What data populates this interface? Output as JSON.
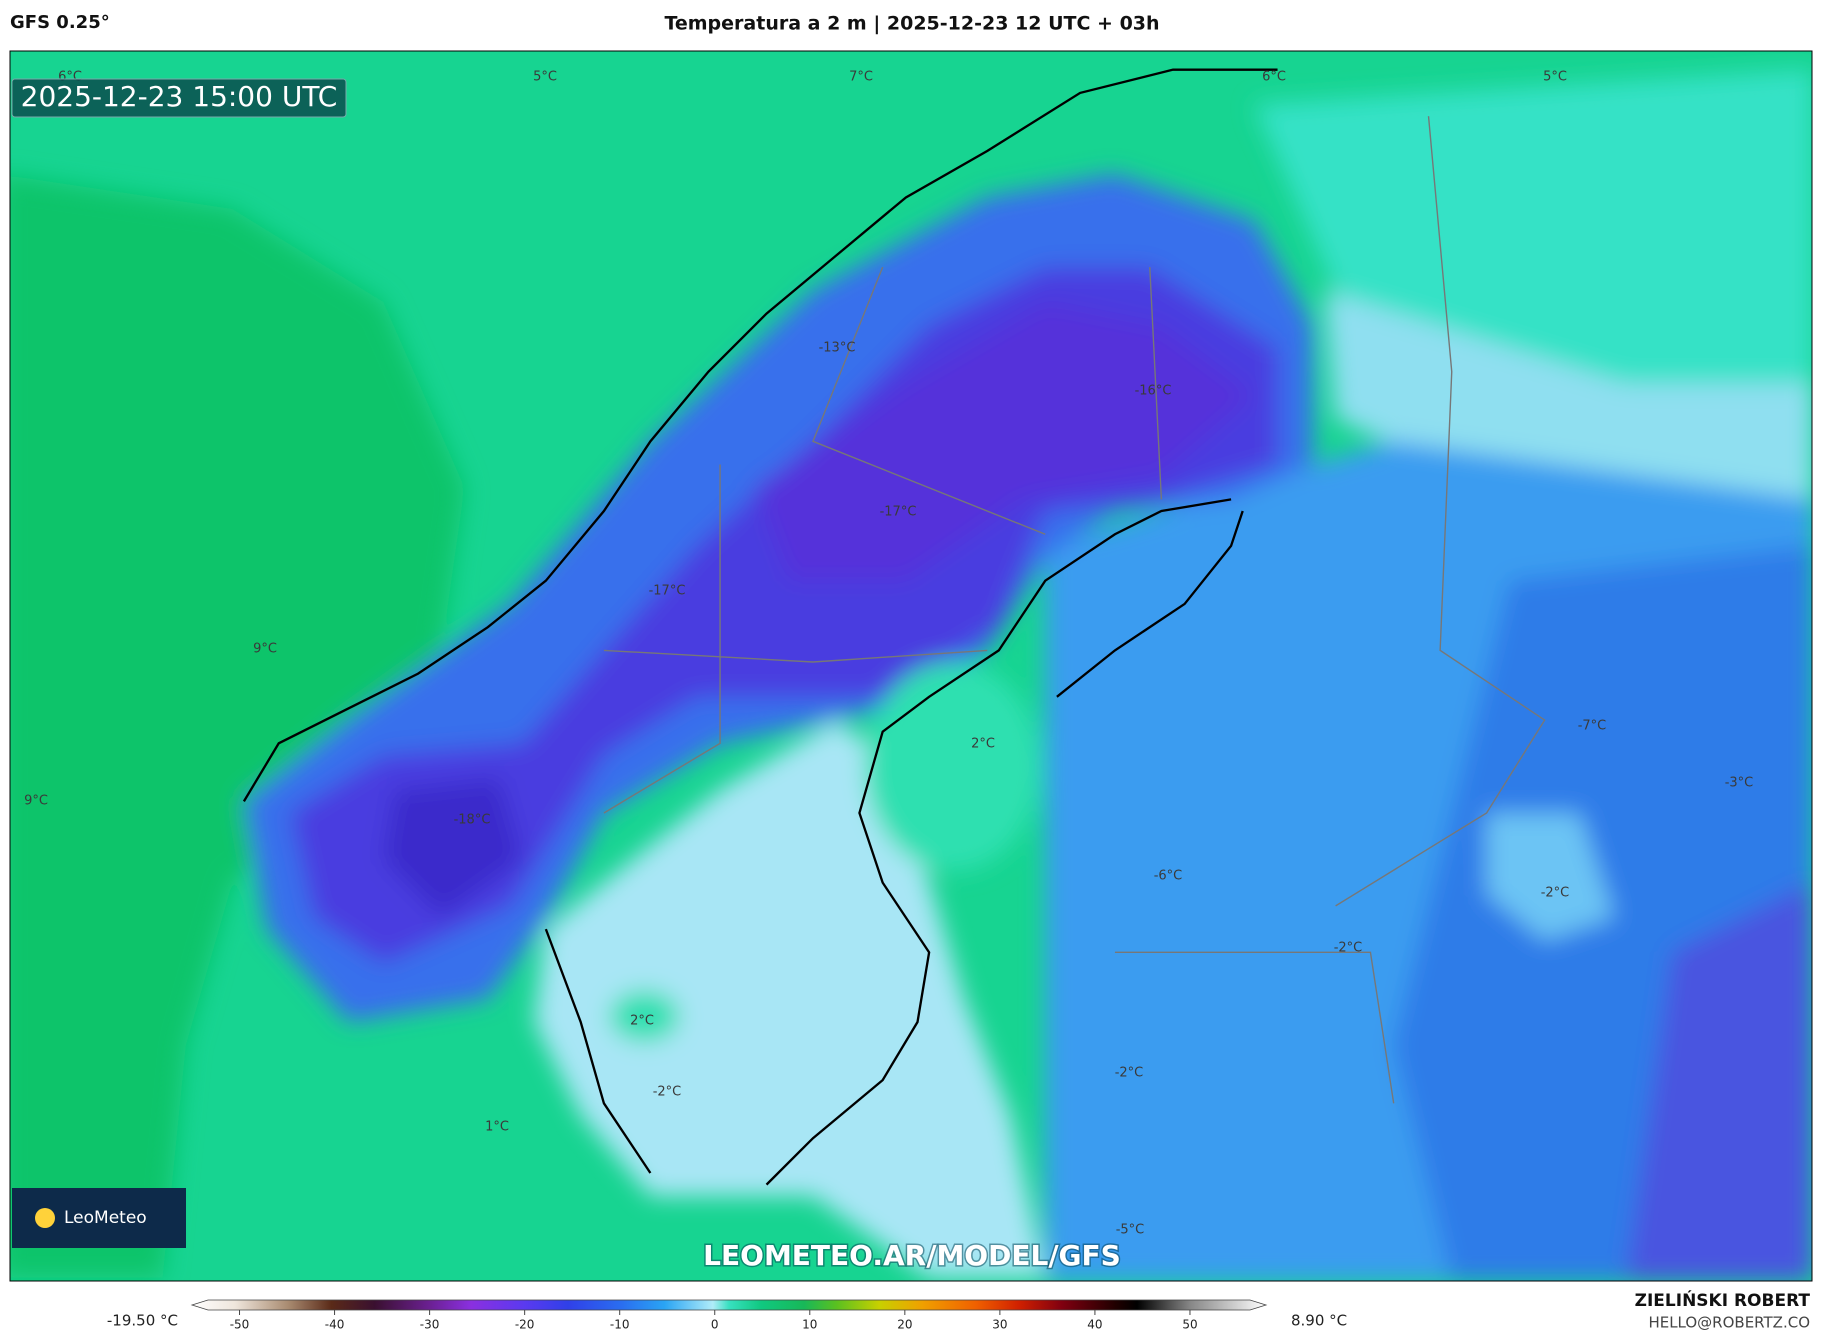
{
  "header": {
    "model": "GFS 0.25°",
    "title": "Temperatura a 2 m | 2025-12-23 12 UTC + 03h"
  },
  "map": {
    "timestamp": "2025-12-23 15:00 UTC",
    "labels": [
      "6°C",
      "5°C",
      "7°C",
      "6°C",
      "5°C",
      "-13°C",
      "-16°C",
      "-17°C",
      "-17°C",
      "9°C",
      "2°C",
      "-7°C",
      "9°C",
      "-18°C",
      "-3°C",
      "-6°C",
      "-2°C",
      "-2°C",
      "2°C",
      "-2°C",
      "-2°C",
      "1°C",
      "-5°C"
    ],
    "logo": "LeoMeteo",
    "watermark": "LEOMETEO.AR/MODEL/GFS"
  },
  "colorbar": {
    "lim": [
      -55,
      58
    ],
    "ticks": [
      -50,
      -40,
      -30,
      -20,
      -10,
      0,
      10,
      20,
      30,
      40,
      50
    ],
    "min_label": "-19.50 °C",
    "max_label": "8.90 °C"
  },
  "footer": {
    "author": "ZIELIŃSKI ROBERT",
    "email": "HELLO@ROBERTZ.CO"
  }
}
